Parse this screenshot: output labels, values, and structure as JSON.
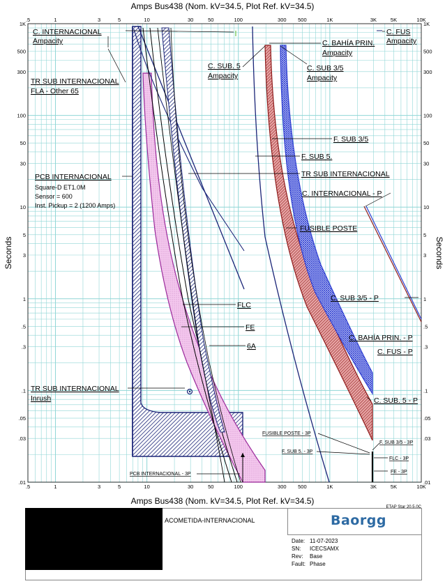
{
  "chart_data": {
    "type": "line",
    "title": "Amps   Bus438 (Nom. kV=34.5, Plot Ref. kV=34.5)",
    "xlabel": "Amps",
    "ylabel": "Seconds",
    "xscale": "log",
    "yscale": "log",
    "xlim": [
      0.5,
      10000
    ],
    "ylim": [
      0.01,
      1000
    ],
    "grid": true,
    "x_ticks": [
      ".5",
      "1",
      "3",
      "5",
      "10",
      "30",
      "50",
      "100",
      "300",
      "500",
      "1K",
      "3K",
      "5K",
      "10K"
    ],
    "y_ticks": [
      "1K",
      "500",
      "300",
      "100",
      "50",
      "30",
      "10",
      "5",
      "3",
      "1",
      ".5",
      ".3",
      ".1",
      ".05",
      ".03",
      ".01"
    ],
    "labels": {
      "c_internacional_amp": "C. INTERNACIONAL",
      "c_internacional_amp2": "Ampacity",
      "c_fus_amp": "C. FUS",
      "c_fus_amp2": "Ampacity",
      "c_bahia_amp": "C. BAHÍA PRIN.",
      "c_bahia_amp2": "Ampacity",
      "c_sub5_amp": "C. SUB. 5",
      "c_sub5_amp2": "Ampacity",
      "c_sub35_amp": "C. SUB 3/5",
      "c_sub35_amp2": "Ampacity",
      "tr_fla": "TR SUB INTERNACIONAL",
      "tr_fla2": "FLA - Other 65",
      "f_sub35": "F. SUB 3/5",
      "f_sub5": "F. SUB 5.",
      "tr_sub": "TR SUB INTERNACIONAL",
      "pcb": "PCB INTERNACIONAL",
      "pcb_model": "Square-D  ET1.0M",
      "pcb_sensor": "Sensor = 600",
      "pcb_pickup": "Inst. Pickup = 2 (1200 Amps)",
      "c_int_p": "C. INTERNACIONAL - P",
      "fusible_poste": "FUSIBLE POSTE",
      "c_sub35_p": "C. SUB 3/5 - P",
      "flc": "FLC",
      "fe": "FE",
      "sixa": "6A",
      "c_bahia_p": "C. BAHÍA PRIN. - P",
      "c_fus_p": "C. FUS - P",
      "inrush": "TR SUB INTERNACIONAL",
      "inrush2": "Inrush",
      "c_sub5_p": "C. SUB. 5 - P",
      "fusible_poste_3p": "FUSIBLE POSTE - 3P",
      "f_sub35_3p": "F. SUB 3/5 - 3P",
      "f_sub5_3p": "F. SUB 5. - 3P",
      "flc_3p": "FLC - 3P",
      "fe_3p": "FE - 3P",
      "pcb_3p": "PCB INTERNACIONAL - 3P"
    },
    "series": [
      {
        "name": "FLC",
        "x": [
          10,
          14,
          20,
          30,
          45,
          70
        ],
        "y": [
          1000,
          100,
          10,
          1,
          0.1,
          0.01
        ]
      },
      {
        "name": "FE",
        "x": [
          12,
          18,
          28,
          45,
          75,
          120
        ],
        "y": [
          1000,
          80,
          8,
          0.8,
          0.08,
          0.01
        ]
      },
      {
        "name": "6A",
        "x": [
          12,
          18,
          28,
          45,
          75,
          100
        ],
        "y": [
          1000,
          100,
          9,
          0.8,
          0.05,
          0.01
        ]
      },
      {
        "name": "TR SUB INTERNACIONAL",
        "x": [
          9,
          20,
          40,
          80,
          150
        ],
        "y": [
          1000,
          100,
          20,
          4,
          1.2
        ]
      },
      {
        "name": "C. INTERNACIONAL - P",
        "x": [
          2200,
          4000,
          10000
        ],
        "y": [
          10,
          2,
          0.55
        ]
      }
    ]
  },
  "footer": {
    "etap": "ETAP Star 20.5.0C",
    "project": "ACOMETIDA-INTERNACIONAL",
    "logo": "Baorgg",
    "date_k": "Date:",
    "date_v": "11-07-2023",
    "sn_k": "SN:",
    "sn_v": "ICECSAMX",
    "rev_k": "Rev:",
    "rev_v": "Base",
    "fault_k": "Fault:",
    "fault_v": "Phase"
  },
  "colors": {
    "grid": "#8fd6d6",
    "navy": "#1a2477",
    "magenta": "#9b2a9b",
    "red": "#8e1b1b",
    "blue": "#2f3fd1"
  }
}
